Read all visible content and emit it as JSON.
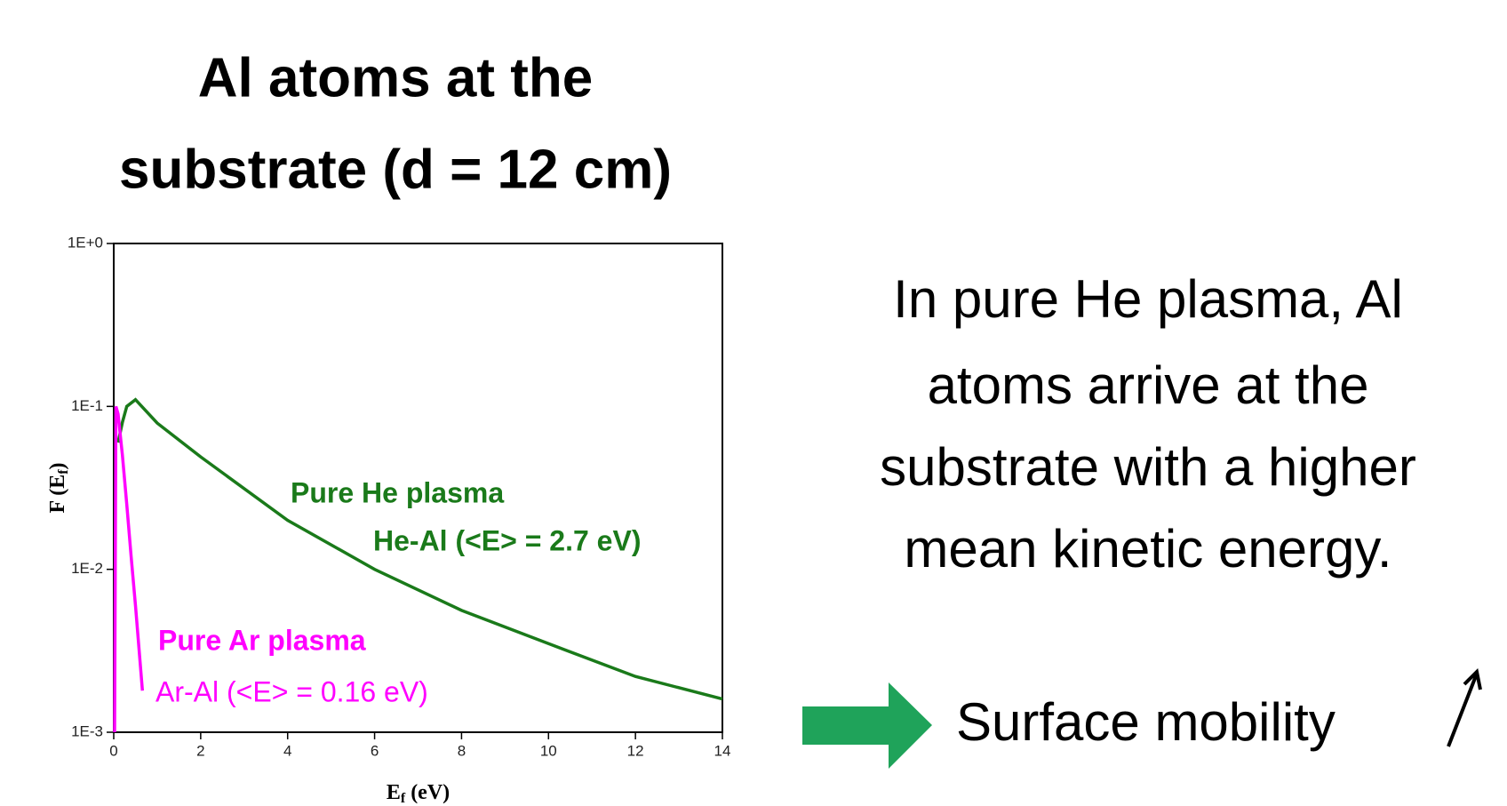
{
  "title_lines": [
    "Al atoms at the",
    "substrate (d = 12 cm)"
  ],
  "text_lines": [
    "In pure He plasma, Al",
    "atoms arrive at the",
    "substrate with a higher",
    "mean kinetic energy."
  ],
  "conclusion": "Surface mobility",
  "chart_data": {
    "type": "line",
    "xlabel": {
      "main": "E",
      "sub": "f",
      "end": " (eV)"
    },
    "ylabel": {
      "main": "F (E",
      "sub": "f",
      "end": ")"
    },
    "xlim": [
      0,
      14
    ],
    "xticks": [
      0,
      2,
      4,
      6,
      8,
      10,
      12,
      14
    ],
    "ylim": [
      0.001,
      1
    ],
    "log_y": true,
    "yticks": [
      {
        "value": 0.001,
        "label": "1E-3"
      },
      {
        "value": 0.01,
        "label": "1E-2"
      },
      {
        "value": 0.1,
        "label": "1E-1"
      },
      {
        "value": 1,
        "label": "1E+0"
      }
    ],
    "series": [
      {
        "name": "He-Al (<E> = 2.7 eV)",
        "color": "#1a7a1a",
        "x": [
          0.1,
          0.2,
          0.3,
          0.5,
          1,
          2,
          4,
          6,
          8,
          10,
          12,
          14
        ],
        "values": [
          0.06,
          0.08,
          0.1,
          0.11,
          0.079,
          0.049,
          0.02,
          0.01,
          0.0056,
          0.0035,
          0.0022,
          0.0016
        ]
      },
      {
        "name": "Ar-Al (<E> = 0.16 eV)",
        "color": "#ff00ff",
        "x": [
          0.02,
          0.05,
          0.1,
          0.2,
          0.3,
          0.4,
          0.5,
          0.66
        ],
        "values": [
          0.001,
          0.1,
          0.09,
          0.05,
          0.025,
          0.012,
          0.006,
          0.0018
        ]
      }
    ],
    "annotations": [
      "Pure He plasma",
      "Pure Ar plasma"
    ]
  }
}
